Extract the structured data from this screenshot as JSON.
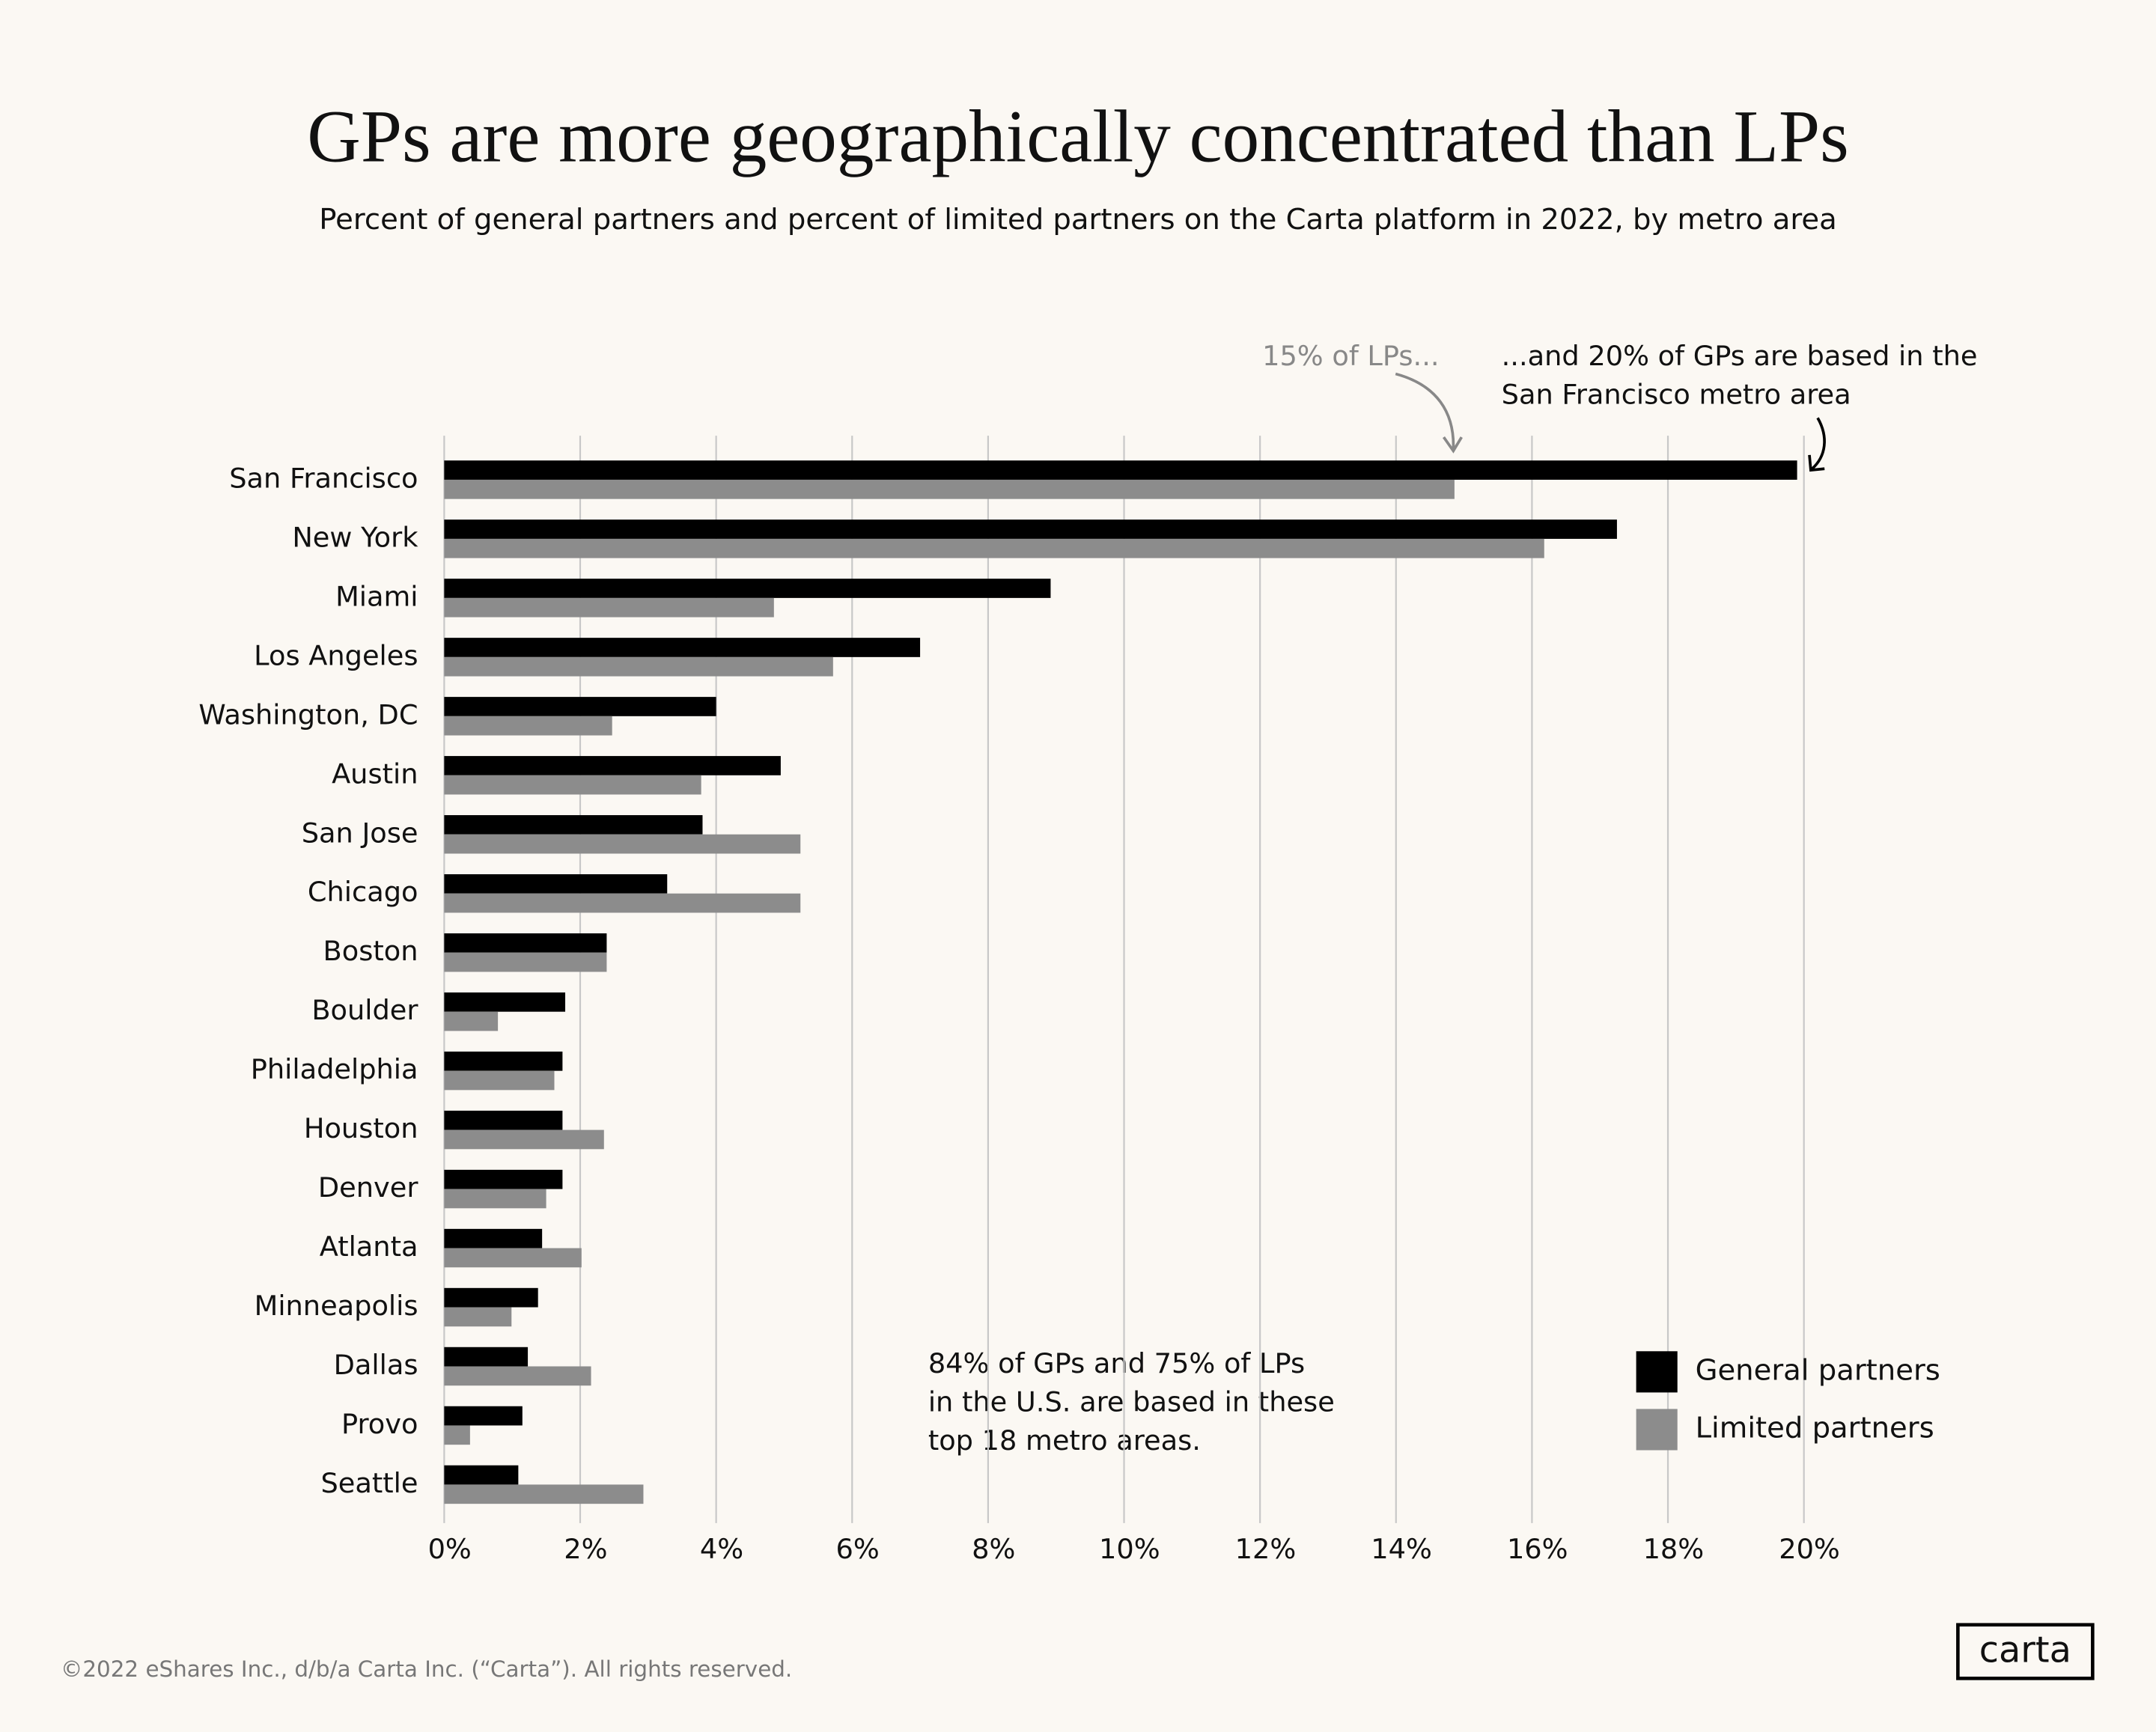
{
  "chart_data": {
    "type": "hbar",
    "title": "GPs are more geographically concentrated than LPs",
    "subtitle": "Percent of general partners and percent of limited partners on the Carta platform in 2022, by metro area",
    "categories": [
      "San Francisco",
      "New York",
      "Miami",
      "Los Angeles",
      "Washington, DC",
      "Austin",
      "San Jose",
      "Chicago",
      "Boston",
      "Boulder",
      "Philadelphia",
      "Houston",
      "Denver",
      "Atlanta",
      "Minneapolis",
      "Dallas",
      "Provo",
      "Seattle"
    ],
    "series": [
      {
        "name": "General partners",
        "color": "#000000",
        "values": [
          19.9,
          17.25,
          8.92,
          7.0,
          4.0,
          4.95,
          3.8,
          3.28,
          2.39,
          1.78,
          1.74,
          1.74,
          1.74,
          1.44,
          1.38,
          1.23,
          1.15,
          1.09
        ]
      },
      {
        "name": "Limited partners",
        "color": "#8c8c8c",
        "values": [
          14.86,
          16.18,
          4.85,
          5.72,
          2.47,
          3.78,
          5.24,
          5.24,
          2.39,
          0.79,
          1.62,
          2.35,
          1.5,
          2.02,
          0.99,
          2.16,
          0.38,
          2.93
        ]
      }
    ],
    "xlim": [
      0,
      20
    ],
    "xticks": [
      {
        "value": 0,
        "label": "0%"
      },
      {
        "value": 2,
        "label": "2%"
      },
      {
        "value": 4,
        "label": "4%"
      },
      {
        "value": 6,
        "label": "6%"
      },
      {
        "value": 8,
        "label": "8%"
      },
      {
        "value": 10,
        "label": "10%"
      },
      {
        "value": 12,
        "label": "12%"
      },
      {
        "value": 14,
        "label": "14%"
      },
      {
        "value": 16,
        "label": "16%"
      },
      {
        "value": 18,
        "label": "18%"
      },
      {
        "value": 20,
        "label": "20%"
      }
    ],
    "grid": true,
    "legend": "lower right",
    "annotations": {
      "lp_note": "15% of LPs...",
      "gp_note": [
        "...and 20% of GPs are based in the",
        "San Francisco metro area"
      ],
      "summary": [
        "84% of GPs and 75% of LPs",
        "in the U.S. are based in these",
        "top 18 metro areas."
      ]
    }
  },
  "footer": {
    "copyright": "©2022 eShares Inc., d/b/a Carta Inc. (“Carta”). All rights reserved.",
    "logo": "carta"
  }
}
